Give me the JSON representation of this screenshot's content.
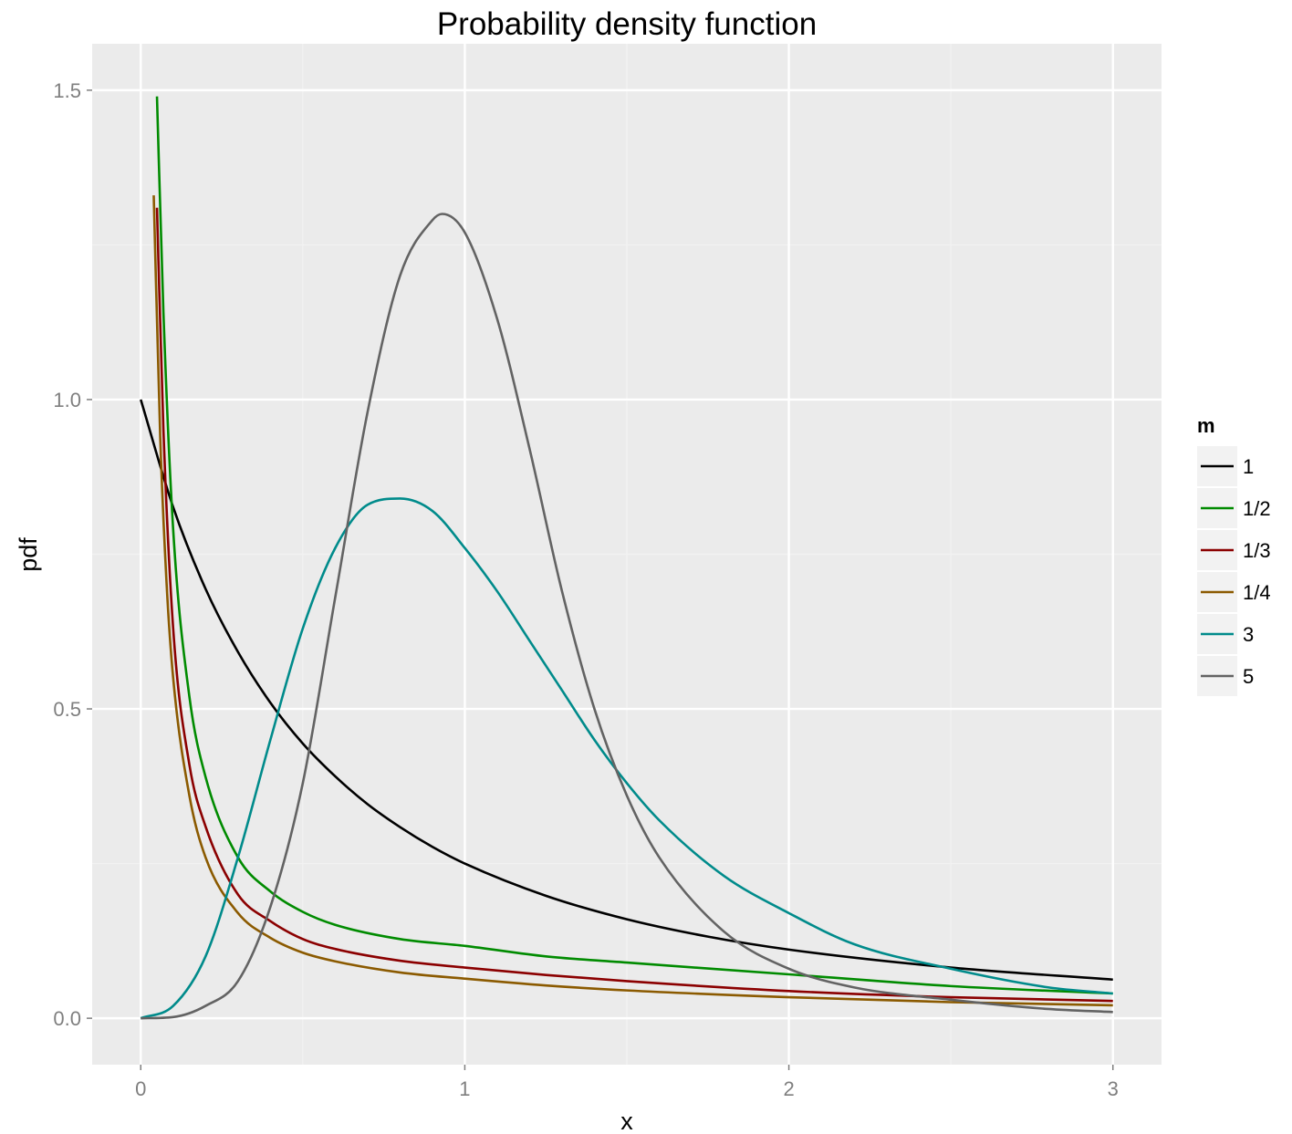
{
  "chart_data": {
    "type": "line",
    "title": "Probability density function",
    "xlabel": "x",
    "ylabel": "pdf",
    "xlim": [
      -0.15,
      3.15
    ],
    "ylim": [
      -0.075,
      1.575
    ],
    "x_ticks": [
      0,
      1,
      2,
      3
    ],
    "x_tick_labels": [
      "0",
      "1",
      "2",
      "3"
    ],
    "y_ticks": [
      0.0,
      0.5,
      1.0,
      1.5
    ],
    "y_tick_labels": [
      "0.0",
      "0.5",
      "1.0",
      "1.5"
    ],
    "grid": true,
    "legend": {
      "title": "m",
      "position": "right"
    },
    "series": [
      {
        "name": "1",
        "color": "#000000",
        "x": [
          0,
          0.1,
          0.2,
          0.3,
          0.4,
          0.5,
          0.6,
          0.7,
          0.8,
          0.9,
          1.0,
          1.25,
          1.5,
          1.75,
          2.0,
          2.5,
          3.0
        ],
        "y": [
          1.0,
          0.826,
          0.694,
          0.592,
          0.51,
          0.444,
          0.391,
          0.346,
          0.309,
          0.277,
          0.25,
          0.198,
          0.16,
          0.132,
          0.111,
          0.082,
          0.0625
        ]
      },
      {
        "name": "1/2",
        "color": "#008b00",
        "x": [
          0.05,
          0.07,
          0.1,
          0.15,
          0.2,
          0.3,
          0.4,
          0.5,
          0.6,
          0.8,
          1.0,
          1.25,
          1.5,
          2.0,
          2.5,
          3.0
        ],
        "y": [
          1.49,
          1.14,
          0.79,
          0.52,
          0.39,
          0.26,
          0.205,
          0.172,
          0.151,
          0.128,
          0.117,
          0.1,
          0.09,
          0.071,
          0.052,
          0.04
        ]
      },
      {
        "name": "1/3",
        "color": "#8b0000",
        "x": [
          0.05,
          0.07,
          0.1,
          0.15,
          0.2,
          0.3,
          0.4,
          0.5,
          0.6,
          0.8,
          1.0,
          1.25,
          1.5,
          2.0,
          2.5,
          3.0
        ],
        "y": [
          1.31,
          0.95,
          0.63,
          0.41,
          0.31,
          0.2,
          0.157,
          0.128,
          0.112,
          0.093,
          0.082,
          0.07,
          0.06,
          0.044,
          0.034,
          0.028
        ]
      },
      {
        "name": "1/4",
        "color": "#8b5a00",
        "x": [
          0.04,
          0.06,
          0.08,
          0.1,
          0.15,
          0.2,
          0.3,
          0.4,
          0.5,
          0.6,
          0.8,
          1.0,
          1.25,
          1.5,
          2.0,
          2.5,
          3.0
        ],
        "y": [
          1.33,
          0.94,
          0.7,
          0.55,
          0.36,
          0.26,
          0.17,
          0.13,
          0.106,
          0.092,
          0.074,
          0.064,
          0.053,
          0.045,
          0.034,
          0.026,
          0.021
        ]
      },
      {
        "name": "3",
        "color": "#008b8b",
        "x": [
          0,
          0.1,
          0.2,
          0.3,
          0.4,
          0.5,
          0.6,
          0.7,
          0.8,
          0.9,
          1.0,
          1.1,
          1.2,
          1.3,
          1.4,
          1.5,
          1.6,
          1.8,
          2.0,
          2.2,
          2.5,
          2.8,
          3.0
        ],
        "y": [
          0,
          0.02,
          0.1,
          0.26,
          0.45,
          0.63,
          0.76,
          0.83,
          0.84,
          0.82,
          0.76,
          0.69,
          0.61,
          0.53,
          0.45,
          0.38,
          0.32,
          0.23,
          0.17,
          0.12,
          0.08,
          0.05,
          0.04
        ]
      },
      {
        "name": "5",
        "color": "#636363",
        "x": [
          0,
          0.1,
          0.2,
          0.3,
          0.4,
          0.5,
          0.6,
          0.7,
          0.8,
          0.9,
          0.93,
          1.0,
          1.1,
          1.2,
          1.3,
          1.4,
          1.5,
          1.6,
          1.8,
          2.0,
          2.2,
          2.5,
          2.8,
          3.0
        ],
        "y": [
          0,
          0.002,
          0.02,
          0.06,
          0.18,
          0.38,
          0.68,
          0.98,
          1.2,
          1.29,
          1.3,
          1.27,
          1.13,
          0.92,
          0.69,
          0.5,
          0.36,
          0.26,
          0.14,
          0.08,
          0.05,
          0.03,
          0.015,
          0.01
        ]
      }
    ]
  }
}
